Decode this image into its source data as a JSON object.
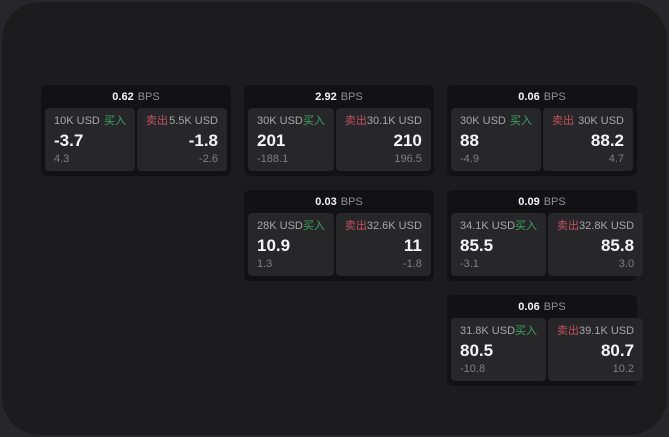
{
  "labels": {
    "bps_suffix": "BPS",
    "buy": "买入",
    "sell": "卖出"
  },
  "colors": {
    "backdrop": "#26262b",
    "panel": "#1c1c1f",
    "card": "#121214",
    "tile": "#272729",
    "green": "#3fa368",
    "red": "#c25063",
    "text_primary": "#f5f5f5",
    "text_secondary": "#a6a6ab",
    "text_dim": "#7e7e84"
  },
  "cards": [
    {
      "col": 1,
      "row": 1,
      "bps": "0.62",
      "buy": {
        "amount": "10K USD",
        "price": "-3.7",
        "delta": "4.3"
      },
      "sell": {
        "amount": "5.5K USD",
        "price": "-1.8",
        "delta": "-2.6"
      }
    },
    {
      "col": 2,
      "row": 1,
      "bps": "2.92",
      "buy": {
        "amount": "30K USD",
        "price": "201",
        "delta": "-188.1"
      },
      "sell": {
        "amount": "30.1K USD",
        "price": "210",
        "delta": "196.5"
      }
    },
    {
      "col": 3,
      "row": 1,
      "bps": "0.06",
      "buy": {
        "amount": "30K USD",
        "price": "88",
        "delta": "-4.9"
      },
      "sell": {
        "amount": "30K USD",
        "price": "88.2",
        "delta": "4.7"
      }
    },
    {
      "col": 2,
      "row": 2,
      "bps": "0.03",
      "buy": {
        "amount": "28K USD",
        "price": "10.9",
        "delta": "1.3"
      },
      "sell": {
        "amount": "32.6K USD",
        "price": "11",
        "delta": "-1.8"
      }
    },
    {
      "col": 3,
      "row": 2,
      "bps": "0.09",
      "buy": {
        "amount": "34.1K USD",
        "price": "85.5",
        "delta": "-3.1"
      },
      "sell": {
        "amount": "32.8K USD",
        "price": "85.8",
        "delta": "3.0"
      }
    },
    {
      "col": 3,
      "row": 3,
      "bps": "0.06",
      "buy": {
        "amount": "31.8K USD",
        "price": "80.5",
        "delta": "-10.8"
      },
      "sell": {
        "amount": "39.1K USD",
        "price": "80.7",
        "delta": "10.2"
      }
    }
  ]
}
